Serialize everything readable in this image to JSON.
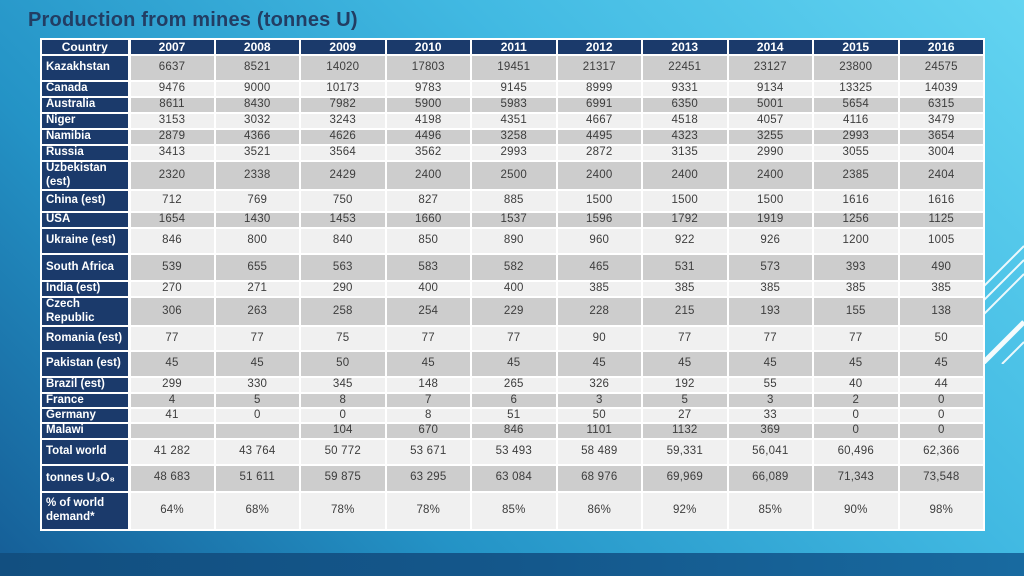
{
  "slide": {
    "title": "Production from mines (tonnes U)"
  },
  "colors": {
    "navy_header": "#1b3a6b",
    "title_navy": "#223d63",
    "row_dark": "#cdcdcd",
    "row_light": "#f0f0f0",
    "background_top": "#63d4f1",
    "background_bottom": "#155d96",
    "bottom_band": "#14578b",
    "stripe": "#ffffff"
  },
  "table": {
    "columns": [
      "Country",
      "2007",
      "2008",
      "2009",
      "2010",
      "2011",
      "2012",
      "2013",
      "2014",
      "2015",
      "2016"
    ],
    "rows": [
      {
        "label": "Kazakhstan",
        "values": [
          "6637",
          "8521",
          "14020",
          "17803",
          "19451",
          "21317",
          "22451",
          "23127",
          "23800",
          "24575"
        ]
      },
      {
        "label": "Canada",
        "values": [
          "9476",
          "9000",
          "10173",
          "9783",
          "9145",
          "8999",
          "9331",
          "9134",
          "13325",
          "14039"
        ]
      },
      {
        "label": "Australia",
        "values": [
          "8611",
          "8430",
          "7982",
          "5900",
          "5983",
          "6991",
          "6350",
          "5001",
          "5654",
          "6315"
        ]
      },
      {
        "label": "Niger",
        "values": [
          "3153",
          "3032",
          "3243",
          "4198",
          "4351",
          "4667",
          "4518",
          "4057",
          "4116",
          "3479"
        ]
      },
      {
        "label": "Namibia",
        "values": [
          "2879",
          "4366",
          "4626",
          "4496",
          "3258",
          "4495",
          "4323",
          "3255",
          "2993",
          "3654"
        ]
      },
      {
        "label": "Russia",
        "values": [
          "3413",
          "3521",
          "3564",
          "3562",
          "2993",
          "2872",
          "3135",
          "2990",
          "3055",
          "3004"
        ]
      },
      {
        "label": "Uzbekistan (est)",
        "values": [
          "2320",
          "2338",
          "2429",
          "2400",
          "2500",
          "2400",
          "2400",
          "2400",
          "2385",
          "2404"
        ]
      },
      {
        "label": "China (est)",
        "values": [
          "712",
          "769",
          "750",
          "827",
          "885",
          "1500",
          "1500",
          "1500",
          "1616",
          "1616"
        ]
      },
      {
        "label": "USA",
        "values": [
          "1654",
          "1430",
          "1453",
          "1660",
          "1537",
          "1596",
          "1792",
          "1919",
          "1256",
          "1125"
        ]
      },
      {
        "label": "Ukraine (est)",
        "values": [
          "846",
          "800",
          "840",
          "850",
          "890",
          "960",
          "922",
          "926",
          "1200",
          "1005"
        ]
      },
      {
        "label": "South Africa",
        "values": [
          "539",
          "655",
          "563",
          "583",
          "582",
          "465",
          "531",
          "573",
          "393",
          "490"
        ]
      },
      {
        "label": "India (est)",
        "values": [
          "270",
          "271",
          "290",
          "400",
          "400",
          "385",
          "385",
          "385",
          "385",
          "385"
        ]
      },
      {
        "label": "Czech Republic",
        "values": [
          "306",
          "263",
          "258",
          "254",
          "229",
          "228",
          "215",
          "193",
          "155",
          "138"
        ]
      },
      {
        "label": "Romania (est)",
        "values": [
          "77",
          "77",
          "75",
          "77",
          "77",
          "90",
          "77",
          "77",
          "77",
          "50"
        ]
      },
      {
        "label": "Pakistan (est)",
        "values": [
          "45",
          "45",
          "50",
          "45",
          "45",
          "45",
          "45",
          "45",
          "45",
          "45"
        ]
      },
      {
        "label": "Brazil (est)",
        "values": [
          "299",
          "330",
          "345",
          "148",
          "265",
          "326",
          "192",
          "55",
          "40",
          "44"
        ]
      },
      {
        "label": "France",
        "values": [
          "4",
          "5",
          "8",
          "7",
          "6",
          "3",
          "5",
          "3",
          "2",
          "0"
        ]
      },
      {
        "label": "Germany",
        "values": [
          "41",
          "0",
          "0",
          "8",
          "51",
          "50",
          "27",
          "33",
          "0",
          "0"
        ]
      },
      {
        "label": "Malawi",
        "values": [
          "",
          "",
          "104",
          "670",
          "846",
          "1101",
          "1132",
          "369",
          "0",
          "0"
        ]
      },
      {
        "label": "Total world",
        "values": [
          "41 282",
          "43 764",
          "50 772",
          "53 671",
          "53 493",
          "58 489",
          "59,331",
          "56,041",
          "60,496",
          "62,366"
        ]
      },
      {
        "label": "tonnes U₃O₈",
        "values": [
          "48 683",
          "51 611",
          "59 875",
          "63 295",
          "63 084",
          "68 976",
          "69,969",
          "66,089",
          "71,343",
          "73,548"
        ]
      },
      {
        "label": "% of world demand*",
        "values": [
          "64%",
          "68%",
          "78%",
          "78%",
          "85%",
          "86%",
          "92%",
          "85%",
          "90%",
          "98%"
        ]
      }
    ]
  }
}
